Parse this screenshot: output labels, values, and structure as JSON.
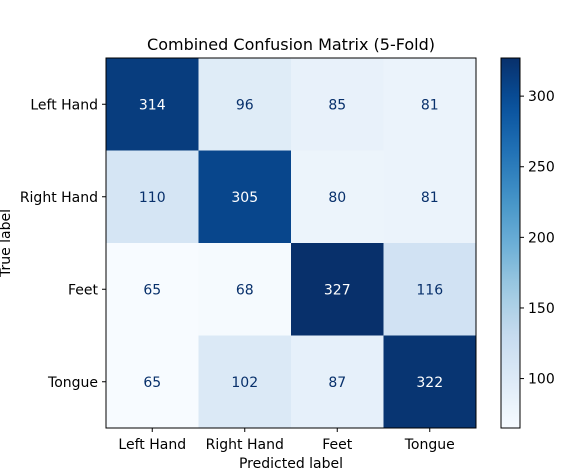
{
  "chart_data": {
    "type": "heatmap",
    "title": "Combined Confusion Matrix (5-Fold)",
    "xlabel": "Predicted label",
    "ylabel": "True label",
    "x_categories": [
      "Left Hand",
      "Right Hand",
      "Feet",
      "Tongue"
    ],
    "y_categories": [
      "Left Hand",
      "Right Hand",
      "Feet",
      "Tongue"
    ],
    "values": [
      [
        314,
        96,
        85,
        81
      ],
      [
        110,
        305,
        80,
        81
      ],
      [
        65,
        68,
        327,
        116
      ],
      [
        65,
        102,
        87,
        322
      ]
    ],
    "colormap": "Blues",
    "colorbar": {
      "range": [
        65,
        327
      ],
      "ticks": [
        100,
        150,
        200,
        250,
        300
      ]
    },
    "grid": false,
    "text_colors": {
      "light": "#ffffff",
      "dark": "#08306b"
    }
  }
}
